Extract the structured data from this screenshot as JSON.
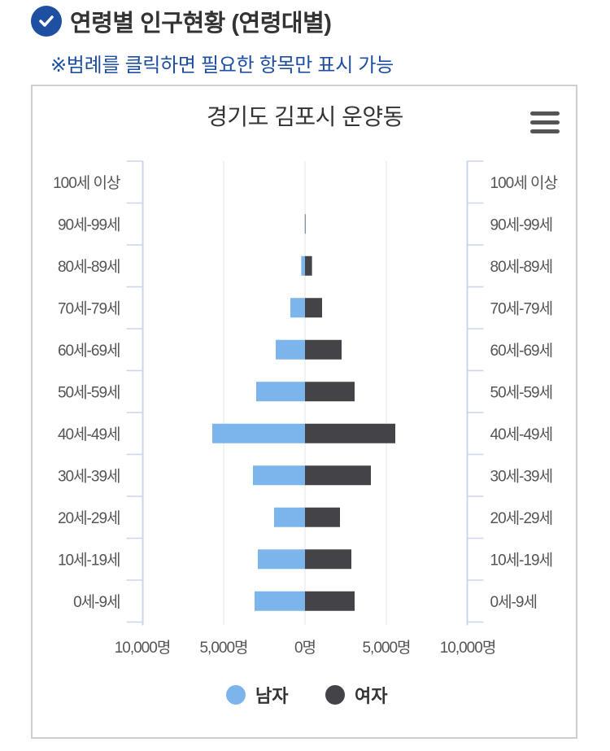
{
  "header": {
    "title": "연령별 인구현황 (연령대별)",
    "note": "※범례를 클릭하면 필요한 항목만 표시 가능",
    "check_icon": "check-circle-icon",
    "accent_color": "#1f4fa0"
  },
  "menu": {
    "icon": "hamburger-menu-icon"
  },
  "chart_data": {
    "type": "bar",
    "orientation": "horizontal-pyramid",
    "title": "경기도 김포시 운양동",
    "categories": [
      "100세 이상",
      "90세-99세",
      "80세-89세",
      "70세-79세",
      "60세-69세",
      "50세-59세",
      "40세-49세",
      "30세-39세",
      "20세-29세",
      "10세-19세",
      "0세-9세"
    ],
    "series": [
      {
        "name": "남자",
        "color": "#7cb5ec",
        "side": "left",
        "values": [
          0,
          20,
          230,
          900,
          1800,
          3000,
          5700,
          3200,
          1900,
          2900,
          3100
        ]
      },
      {
        "name": "여자",
        "color": "#434348",
        "side": "right",
        "values": [
          0,
          30,
          430,
          1050,
          2250,
          3050,
          5550,
          4050,
          2150,
          2850,
          3050
        ]
      }
    ],
    "x_ticks": [
      "10,000명",
      "5,000명",
      "0명",
      "5,000명",
      "10,000명"
    ],
    "xlim": [
      -10000,
      10000
    ],
    "grid": true,
    "legend_position": "bottom-center"
  }
}
